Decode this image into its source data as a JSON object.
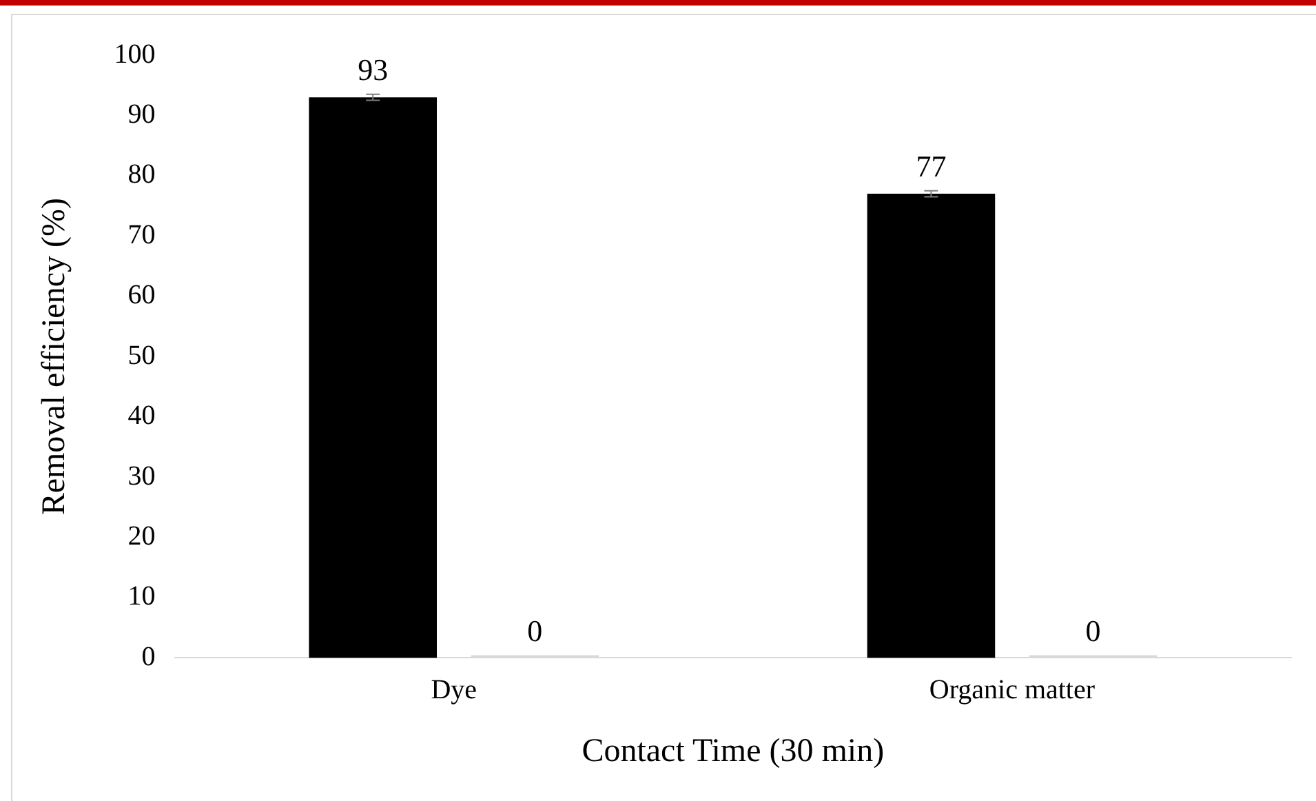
{
  "chart_data": {
    "type": "bar",
    "xlabel": "Contact Time (30 min)",
    "ylabel": "Removal efficiency (%)",
    "categories": [
      "Dye",
      "Organic matter"
    ],
    "series": [
      {
        "color": "#000000",
        "values": [
          93,
          77
        ],
        "errors": [
          0.5,
          0.5
        ]
      },
      {
        "color": "#d9d9d9",
        "values": [
          0,
          0
        ],
        "errors": [
          null,
          null
        ]
      }
    ],
    "ylim": [
      0,
      100
    ],
    "yticks": [
      0,
      10,
      20,
      30,
      40,
      50,
      60,
      70,
      80,
      90,
      100
    ],
    "grid": false,
    "legend": false,
    "data_labels": true
  }
}
